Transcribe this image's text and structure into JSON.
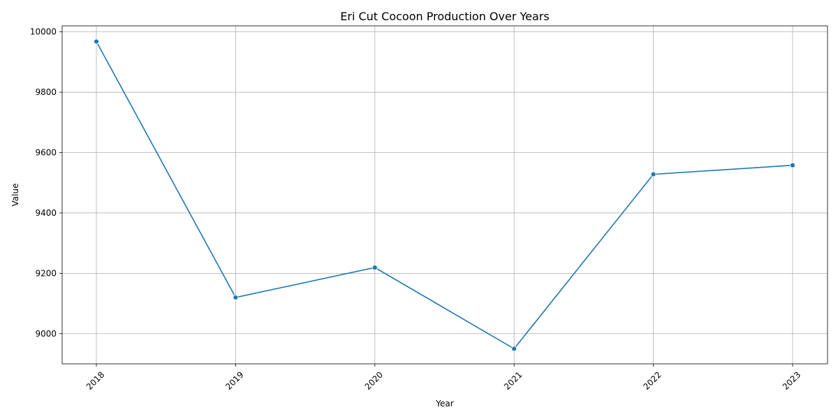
{
  "chart_data": {
    "type": "line",
    "title": "Eri Cut Cocoon Production Over Years",
    "xlabel": "Year",
    "ylabel": "Value",
    "x": [
      "2018",
      "2019",
      "2020",
      "2021",
      "2022",
      "2023"
    ],
    "series": [
      {
        "values": [
          9968,
          9120,
          9219,
          8950,
          9528,
          9558
        ],
        "color": "#1f77b4",
        "marker": "circle"
      }
    ],
    "ylim": [
      8900,
      10020
    ],
    "yticks": [
      9000,
      9200,
      9400,
      9600,
      9800,
      10000
    ],
    "x_tick_rotation_deg": 45,
    "grid": true,
    "legend": "none"
  }
}
